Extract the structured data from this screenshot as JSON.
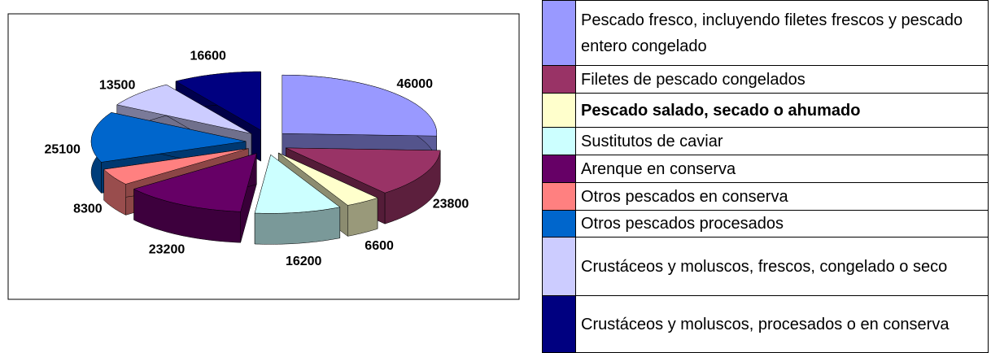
{
  "chart_data": {
    "type": "pie",
    "categories": [
      "Pescado fresco, incluyendo filetes frescos y pescado entero congelado",
      "Filetes de pescado congelados",
      "Pescado salado, secado o ahumado",
      "Sustitutos de caviar",
      "Arenque en conserva",
      "Otros pescados en conserva",
      "Otros pescados procesados",
      "Crustáceos y moluscos, frescos, congelado o seco",
      "Crustáceos y moluscos, procesados o en conserva"
    ],
    "values": [
      46000,
      23800,
      6600,
      16200,
      23200,
      8300,
      25100,
      13500,
      16600
    ],
    "colors": [
      "#9999ff",
      "#993366",
      "#ffffcc",
      "#ccffff",
      "#660066",
      "#ff8080",
      "#0066cc",
      "#ccccff",
      "#000080"
    ]
  }
}
